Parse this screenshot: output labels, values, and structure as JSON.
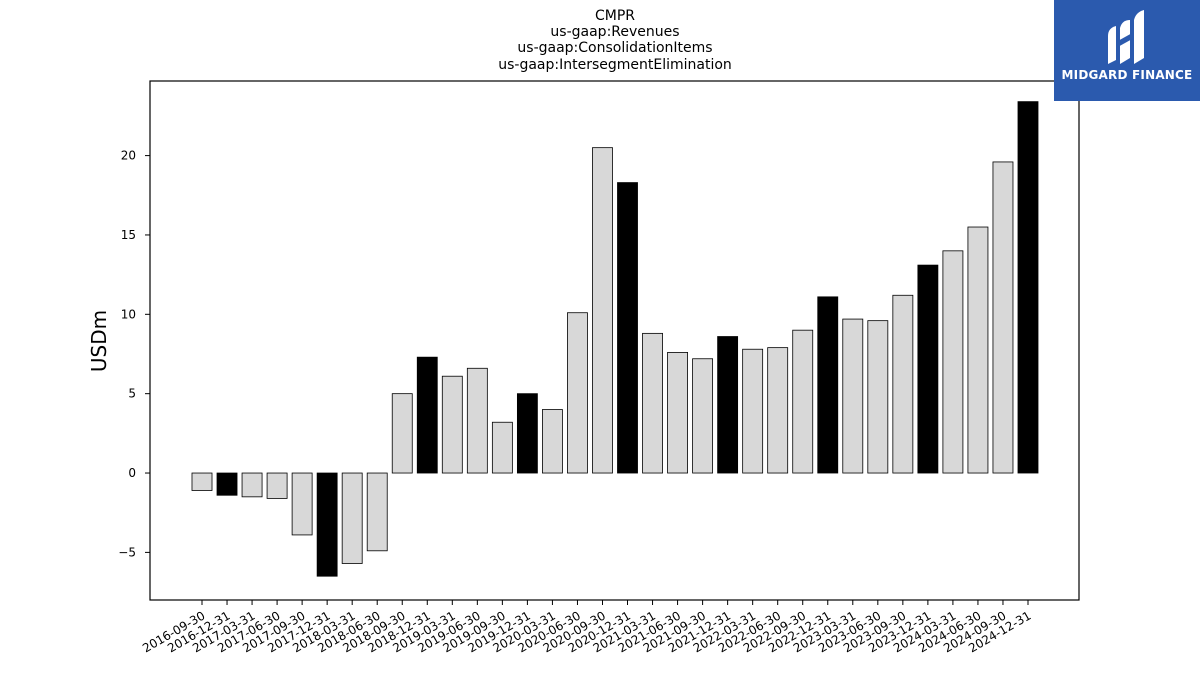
{
  "brand": {
    "name": "MIDGARD FINANCE",
    "bg_color": "#2b5aae"
  },
  "chart_data": {
    "type": "bar",
    "title_lines": [
      "CMPR",
      "us-gaap:Revenues",
      "us-gaap:ConsolidationItems",
      "us-gaap:IntersegmentElimination"
    ],
    "xlabel": "",
    "ylabel": "USDm",
    "ylim": [
      -8,
      24.7
    ],
    "yticks": [
      -5,
      0,
      5,
      10,
      15,
      20
    ],
    "ytick_labels": [
      "−5",
      "0",
      "5",
      "10",
      "15",
      "20"
    ],
    "grid": false,
    "categories": [
      "2016-09-30",
      "2016-12-31",
      "2017-03-31",
      "2017-06-30",
      "2017-09-30",
      "2017-12-31",
      "2018-03-31",
      "2018-06-30",
      "2018-09-30",
      "2018-12-31",
      "2019-03-31",
      "2019-06-30",
      "2019-09-30",
      "2019-12-31",
      "2020-03-31",
      "2020-06-30",
      "2020-09-30",
      "2020-12-31",
      "2021-03-31",
      "2021-06-30",
      "2021-09-30",
      "2021-12-31",
      "2022-03-31",
      "2022-06-30",
      "2022-09-30",
      "2022-12-31",
      "2023-03-31",
      "2023-06-30",
      "2023-09-30",
      "2023-12-31",
      "2024-03-31",
      "2024-06-30",
      "2024-09-30",
      "2024-12-31"
    ],
    "values": [
      -1.1,
      -1.4,
      -1.5,
      -1.6,
      -3.9,
      -6.5,
      -5.7,
      -4.9,
      5.0,
      7.3,
      6.1,
      6.6,
      3.2,
      5.0,
      4.0,
      10.1,
      20.5,
      18.3,
      8.8,
      7.6,
      7.2,
      8.6,
      7.8,
      7.9,
      9.0,
      11.1,
      9.7,
      9.6,
      11.2,
      13.1,
      14.0,
      15.5,
      19.6,
      23.4
    ],
    "highlight": [
      false,
      true,
      false,
      false,
      false,
      true,
      false,
      false,
      false,
      true,
      false,
      false,
      false,
      true,
      false,
      false,
      false,
      true,
      false,
      false,
      false,
      true,
      false,
      false,
      false,
      true,
      false,
      false,
      false,
      true,
      false,
      false,
      false,
      true
    ],
    "colors": {
      "default": "#d8d8d8",
      "highlight": "#000000",
      "edge": "#000000"
    }
  }
}
